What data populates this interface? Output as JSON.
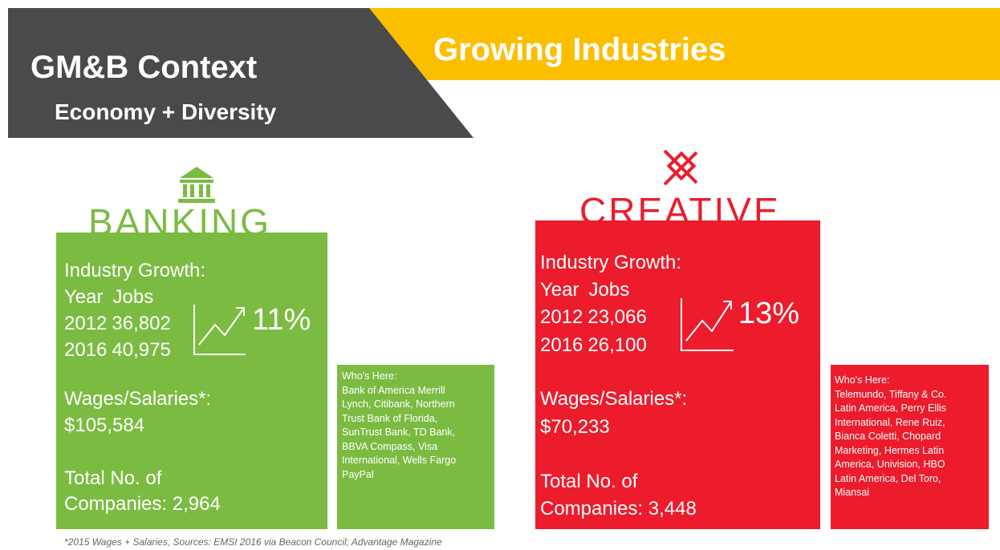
{
  "header": {
    "title": "GM&B Context",
    "subtitle": "Economy + Diversity"
  },
  "banner": {
    "title": "Growing Industries"
  },
  "industries": [
    {
      "name": "BANKING",
      "growth_label": "Industry Growth:",
      "table_header": [
        "Year",
        "Jobs"
      ],
      "rows": [
        [
          "2012",
          "36,802"
        ],
        [
          "2016",
          "40,975"
        ]
      ],
      "growth_percent": "11%",
      "wages_label": "Wages/Salaries*:",
      "wages": "$105,584",
      "companies_lines": [
        "Total No. of",
        "Companies: 2,964"
      ],
      "whos_here_lines": [
        "Who's Here:",
        "Bank of America Merrill",
        "Lynch, Citibank, Northern",
        "Trust Bank of Florida,",
        "SunTrust Bank, TD Bank,",
        "BBVA Compass, Visa",
        "International, Wells Fargo",
        "PayPal"
      ]
    },
    {
      "name": "CREATIVE",
      "growth_label": "Industry Growth:",
      "table_header": [
        "Year",
        "Jobs"
      ],
      "rows": [
        [
          "2012",
          "23,066"
        ],
        [
          "2016",
          "26,100"
        ]
      ],
      "growth_percent": "13%",
      "wages_label": "Wages/Salaries*:",
      "wages": "$70,233",
      "companies_lines": [
        "Total No. of",
        "Companies: 3,448"
      ],
      "whos_here_lines": [
        "Who's Here:",
        "Telemundo, Tiffany & Co.",
        "Latin America, Perry Ellis",
        "International, Rene Ruiz,",
        "Bianca Coletti, Chopard",
        "Marketing, Hermes Latin",
        "America, Univision, HBO",
        "Latin America, Del Toro,",
        "Miansai"
      ]
    }
  ],
  "footnote": "*2015 Wages + Salaries, Sources: EMSI 2016 via Beacon Council; Advantage Magazine"
}
